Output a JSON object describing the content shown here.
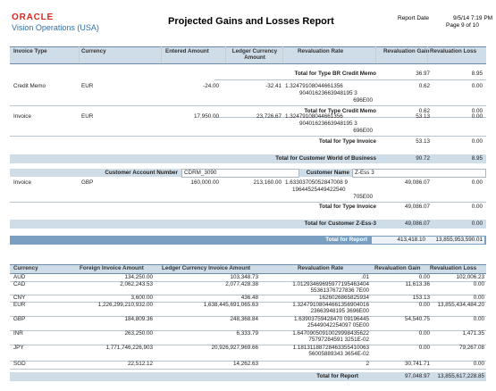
{
  "header": {
    "logo": "ORACLE",
    "org": "Vision Operations (USA)",
    "title": "Projected Gains and Losses Report",
    "report_date_label": "Report Date",
    "report_date_value": "9/5/14 7:19 PM",
    "page": "Page 9 of 10"
  },
  "table1": {
    "columns": [
      "Invoice Type",
      "Currency",
      "Entered Amount",
      "Ledger Currency Amount",
      "Revaluation Rate",
      "Revaluation Gain",
      "Revaluation Loss"
    ],
    "total_br": {
      "label": "Total for Type BR Credit Memo",
      "gain": "36.97",
      "loss": "8.95"
    },
    "credit_memo": {
      "type": "Credit Memo",
      "currency": "EUR",
      "entered": "-24.00",
      "ledger": "-32.41",
      "rate": [
        "1.32479108044661356",
        "90401623663948195 3",
        "696E00"
      ],
      "gain": "0.62",
      "loss": "0.00"
    },
    "total_cm": {
      "label": "Total for Type Credit Memo",
      "gain": "0.62",
      "loss": "0.00"
    },
    "invoice": {
      "type": "Invoice",
      "currency": "EUR",
      "entered": "17,950.00",
      "ledger": "23,726.67",
      "rate": [
        "1.32479108044661356",
        "90401623663948195 3",
        "696E00"
      ],
      "gain": "53.13",
      "loss": "0.00"
    },
    "total_inv": {
      "label": "Total for Type Invoice",
      "gain": "53.13",
      "loss": "0.00"
    },
    "total_customer_wb": {
      "label": "Total for Customer World of Business",
      "gain": "90.72",
      "loss": "8.95"
    },
    "customer_block": {
      "acct_label": "Customer Account Number",
      "acct_value": "CDRM_3090",
      "name_label": "Customer Name",
      "name_value": "Z-Ess 3"
    },
    "invoice2": {
      "type": "Invoice",
      "currency": "GBP",
      "entered": "160,000.00",
      "ledger": "213,160.00",
      "rate": [
        "1.63303705052847008 9",
        "19644525449422540",
        "705E00"
      ],
      "gain": "49,086.07",
      "loss": "0.00"
    },
    "total_inv2": {
      "label": "Total for Type Invoice",
      "gain": "49,086.07",
      "loss": "0.00"
    },
    "total_customer_z": {
      "label": "Total for Customer Z-Ess-3",
      "gain": "49,086.07",
      "loss": "0.00"
    },
    "total_report": {
      "label": "Total for Report",
      "gain": "413,418.10",
      "loss": "13,855,953,590.01"
    }
  },
  "table2": {
    "columns": [
      "Currency",
      "Foreign Invoice Amount",
      "Ledger Currency Invoice Amount",
      "Revaluation Rate",
      "Revaluation Gain",
      "Revaluation Loss"
    ],
    "rows": [
      {
        "cur": "AUD",
        "foreign": "134,250.00",
        "ledger": "103,348.73",
        "rate": [
          ".01"
        ],
        "gain": "0.00",
        "loss": "102,006.23"
      },
      {
        "cur": "CAD",
        "foreign": "2,062,243.53",
        "ledger": "2,077,428.38",
        "rate": [
          "1.01293469695977195463404",
          "55361376727836 7E00"
        ],
        "gain": "11,613.36",
        "loss": "0.00"
      },
      {
        "cur": "CNY",
        "foreign": "3,600.00",
        "ledger": "436.48",
        "rate": [
          "1626026865825934"
        ],
        "gain": "153.13",
        "loss": "0.00"
      },
      {
        "cur": "EUR",
        "foreign": "1,226,299,210,932.00",
        "ledger": "1,638,445,691,065.63",
        "rate": [
          "1.32479108044661356904016",
          "23663948195 3696E00"
        ],
        "gain": "0.00",
        "loss": "13,855,434,484.20"
      },
      {
        "cur": "GBP",
        "foreign": "184,809.36",
        "ledger": "248,368.84",
        "rate": [
          "1.63903759428470 09196445",
          "25449042254097 05E00"
        ],
        "gain": "54,540.75",
        "loss": "0.00"
      },
      {
        "cur": "INR",
        "foreign": "263,250.00",
        "ledger": "6,333.79",
        "rate": [
          "1.64709050910029998435622",
          "75797284591 3251E-02"
        ],
        "gain": "0.00",
        "loss": "1,471.35"
      },
      {
        "cur": "JPY",
        "foreign": "1,771,746,226,903",
        "ledger": "20,926,927,969.66",
        "rate": [
          "1.18131188728463355410063",
          "56005889343 3654E-02"
        ],
        "gain": "0.00",
        "loss": "79,267.08"
      },
      {
        "cur": "SGD",
        "foreign": "22,512.12",
        "ledger": "14,262.63",
        "rate": [
          "2"
        ],
        "gain": "30,741.71",
        "loss": "0.00"
      }
    ],
    "total": {
      "label": "Total for Report",
      "gain": "97,048.97",
      "loss": "13,855,617,228.85"
    }
  }
}
